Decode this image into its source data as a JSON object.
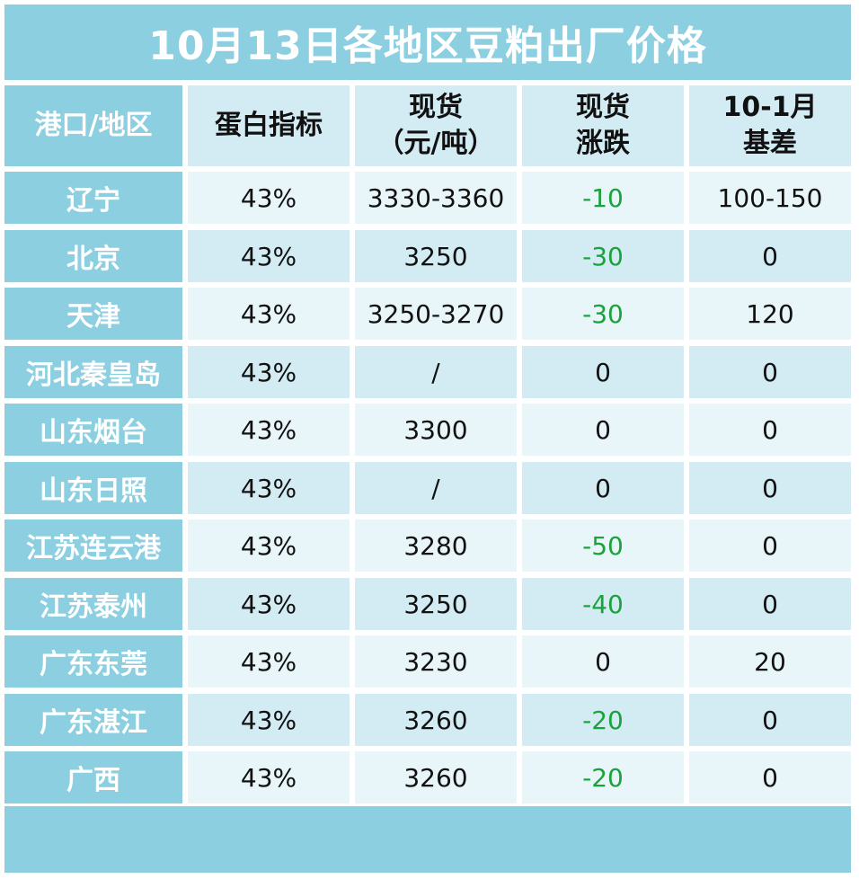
{
  "title": "10月13日各地区豆粕出厂价格",
  "headers": {
    "region": "港口/地区",
    "protein": "蛋白指标",
    "spot_line1": "现货",
    "spot_line2": "（元/吨）",
    "change_line1": "现货",
    "change_line2": "涨跌",
    "basis_line1": "10-1月",
    "basis_line2": "基差"
  },
  "rows": [
    {
      "region": "辽宁",
      "protein": "43%",
      "spot": "3330-3360",
      "change": "-10",
      "basis": "100-150"
    },
    {
      "region": "北京",
      "protein": "43%",
      "spot": "3250",
      "change": "-30",
      "basis": "0"
    },
    {
      "region": "天津",
      "protein": "43%",
      "spot": "3250-3270",
      "change": "-30",
      "basis": "120"
    },
    {
      "region": "河北秦皇岛",
      "protein": "43%",
      "spot": "/",
      "change": "0",
      "basis": "0"
    },
    {
      "region": "山东烟台",
      "protein": "43%",
      "spot": "3300",
      "change": "0",
      "basis": "0"
    },
    {
      "region": "山东日照",
      "protein": "43%",
      "spot": "/",
      "change": "0",
      "basis": "0"
    },
    {
      "region": "江苏连云港",
      "protein": "43%",
      "spot": "3280",
      "change": "-50",
      "basis": "0"
    },
    {
      "region": "江苏泰州",
      "protein": "43%",
      "spot": "3250",
      "change": "-40",
      "basis": "0"
    },
    {
      "region": "广东东莞",
      "protein": "43%",
      "spot": "3230",
      "change": "0",
      "basis": "20"
    },
    {
      "region": "广东湛江",
      "protein": "43%",
      "spot": "3260",
      "change": "-20",
      "basis": "0"
    },
    {
      "region": "广西",
      "protein": "43%",
      "spot": "3260",
      "change": "-20",
      "basis": "0"
    }
  ],
  "colors": {
    "header_blue": "#8ccfe0",
    "cell_light": "#e8f5f9",
    "cell_mid": "#d3ecf4",
    "negative_green": "#1aa33c"
  }
}
